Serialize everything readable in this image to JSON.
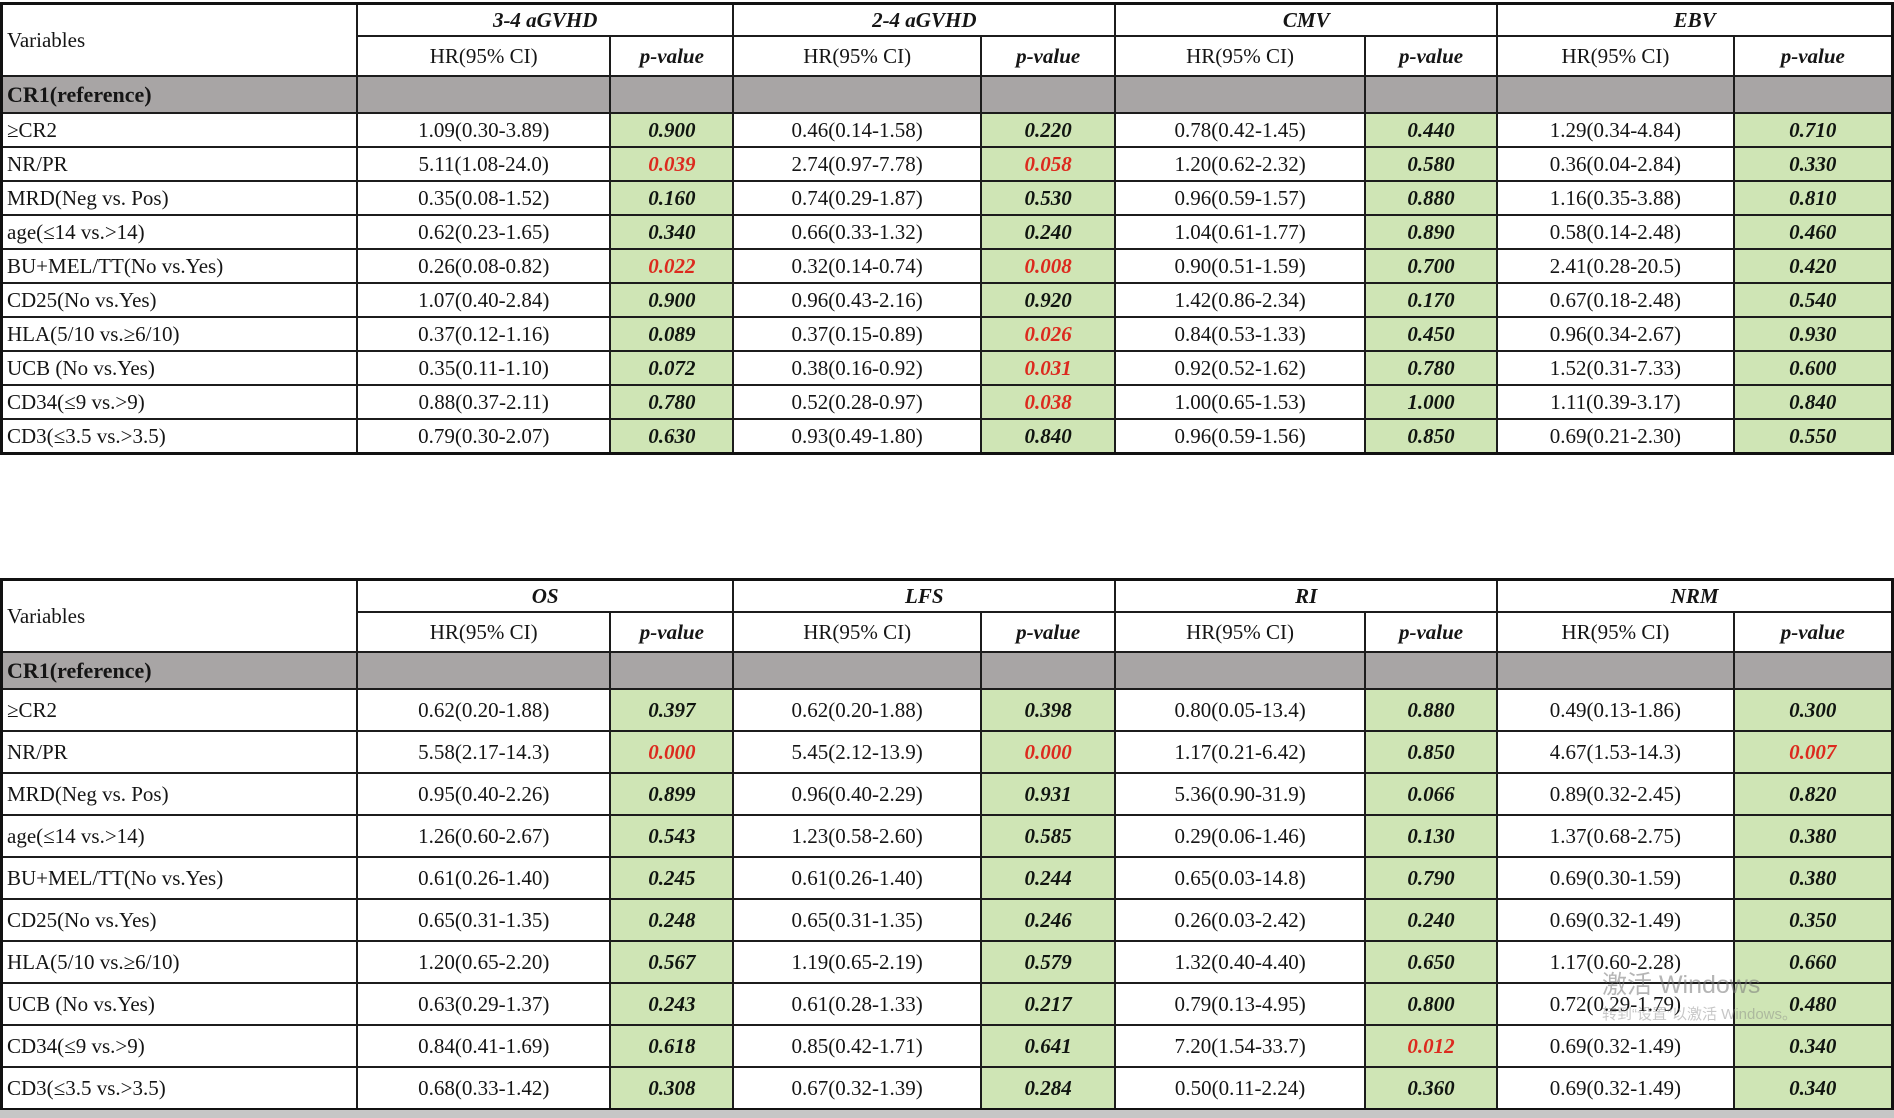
{
  "colors": {
    "p_cell_green": "#cfe5b5",
    "reference_gray": "#a8a5a5",
    "significant_red": "#dc2a1e",
    "ink": "#151515"
  },
  "watermark": {
    "line1": "激活 Windows",
    "line2": "转到“设置”以激活 Windows。"
  },
  "tables": [
    {
      "variables_header": "Variables",
      "hr_header": "HR(95% CI)",
      "p_header": "p-value",
      "groups": [
        "3-4 aGVHD",
        "2-4 aGVHD",
        "CMV",
        "EBV"
      ],
      "reference_row": "CR1(reference)",
      "rows": [
        {
          "variable": "≥CR2",
          "cells": [
            {
              "hr": "1.09(0.30-3.89)",
              "p": "0.900",
              "sig": false
            },
            {
              "hr": "0.46(0.14-1.58)",
              "p": "0.220",
              "sig": false
            },
            {
              "hr": "0.78(0.42-1.45)",
              "p": "0.440",
              "sig": false
            },
            {
              "hr": "1.29(0.34-4.84)",
              "p": "0.710",
              "sig": false
            }
          ]
        },
        {
          "variable": "NR/PR",
          "cells": [
            {
              "hr": "5.11(1.08-24.0)",
              "p": "0.039",
              "sig": true
            },
            {
              "hr": "2.74(0.97-7.78)",
              "p": "0.058",
              "sig": true
            },
            {
              "hr": "1.20(0.62-2.32)",
              "p": "0.580",
              "sig": false
            },
            {
              "hr": "0.36(0.04-2.84)",
              "p": "0.330",
              "sig": false
            }
          ]
        },
        {
          "variable": "MRD(Neg vs. Pos)",
          "cells": [
            {
              "hr": "0.35(0.08-1.52)",
              "p": "0.160",
              "sig": false
            },
            {
              "hr": "0.74(0.29-1.87)",
              "p": "0.530",
              "sig": false
            },
            {
              "hr": "0.96(0.59-1.57)",
              "p": "0.880",
              "sig": false
            },
            {
              "hr": "1.16(0.35-3.88)",
              "p": "0.810",
              "sig": false
            }
          ]
        },
        {
          "variable": "age(≤14 vs.>14)",
          "cells": [
            {
              "hr": "0.62(0.23-1.65)",
              "p": "0.340",
              "sig": false
            },
            {
              "hr": "0.66(0.33-1.32)",
              "p": "0.240",
              "sig": false
            },
            {
              "hr": "1.04(0.61-1.77)",
              "p": "0.890",
              "sig": false
            },
            {
              "hr": "0.58(0.14-2.48)",
              "p": "0.460",
              "sig": false
            }
          ]
        },
        {
          "variable": "BU+MEL/TT(No vs.Yes)",
          "cells": [
            {
              "hr": "0.26(0.08-0.82)",
              "p": "0.022",
              "sig": true
            },
            {
              "hr": "0.32(0.14-0.74)",
              "p": "0.008",
              "sig": true
            },
            {
              "hr": "0.90(0.51-1.59)",
              "p": "0.700",
              "sig": false
            },
            {
              "hr": "2.41(0.28-20.5)",
              "p": "0.420",
              "sig": false
            }
          ]
        },
        {
          "variable": "CD25(No vs.Yes)",
          "cells": [
            {
              "hr": "1.07(0.40-2.84)",
              "p": "0.900",
              "sig": false
            },
            {
              "hr": "0.96(0.43-2.16)",
              "p": "0.920",
              "sig": false
            },
            {
              "hr": "1.42(0.86-2.34)",
              "p": "0.170",
              "sig": false
            },
            {
              "hr": "0.67(0.18-2.48)",
              "p": "0.540",
              "sig": false
            }
          ]
        },
        {
          "variable": "HLA(5/10 vs.≥6/10)",
          "cells": [
            {
              "hr": "0.37(0.12-1.16)",
              "p": "0.089",
              "sig": false
            },
            {
              "hr": "0.37(0.15-0.89)",
              "p": "0.026",
              "sig": true
            },
            {
              "hr": "0.84(0.53-1.33)",
              "p": "0.450",
              "sig": false
            },
            {
              "hr": "0.96(0.34-2.67)",
              "p": "0.930",
              "sig": false
            }
          ]
        },
        {
          "variable": "UCB (No vs.Yes)",
          "cells": [
            {
              "hr": "0.35(0.11-1.10)",
              "p": "0.072",
              "sig": false
            },
            {
              "hr": "0.38(0.16-0.92)",
              "p": "0.031",
              "sig": true
            },
            {
              "hr": "0.92(0.52-1.62)",
              "p": "0.780",
              "sig": false
            },
            {
              "hr": "1.52(0.31-7.33)",
              "p": "0.600",
              "sig": false
            }
          ]
        },
        {
          "variable": "CD34(≤9 vs.>9)",
          "cells": [
            {
              "hr": "0.88(0.37-2.11)",
              "p": "0.780",
              "sig": false
            },
            {
              "hr": "0.52(0.28-0.97)",
              "p": "0.038",
              "sig": true
            },
            {
              "hr": "1.00(0.65-1.53)",
              "p": "1.000",
              "sig": false
            },
            {
              "hr": "1.11(0.39-3.17)",
              "p": "0.840",
              "sig": false
            }
          ]
        },
        {
          "variable": "CD3(≤3.5 vs.>3.5)",
          "cells": [
            {
              "hr": "0.79(0.30-2.07)",
              "p": "0.630",
              "sig": false
            },
            {
              "hr": "0.93(0.49-1.80)",
              "p": "0.840",
              "sig": false
            },
            {
              "hr": "0.96(0.59-1.56)",
              "p": "0.850",
              "sig": false
            },
            {
              "hr": "0.69(0.21-2.30)",
              "p": "0.550",
              "sig": false
            }
          ]
        }
      ]
    },
    {
      "variables_header": "Variables",
      "hr_header": "HR(95% CI)",
      "p_header": "p-value",
      "groups": [
        "OS",
        "LFS",
        "RI",
        "NRM"
      ],
      "reference_row": "CR1(reference)",
      "rows": [
        {
          "variable": "≥CR2",
          "cells": [
            {
              "hr": "0.62(0.20-1.88)",
              "p": "0.397",
              "sig": false
            },
            {
              "hr": "0.62(0.20-1.88)",
              "p": "0.398",
              "sig": false
            },
            {
              "hr": "0.80(0.05-13.4)",
              "p": "0.880",
              "sig": false
            },
            {
              "hr": "0.49(0.13-1.86)",
              "p": "0.300",
              "sig": false
            }
          ]
        },
        {
          "variable": "NR/PR",
          "cells": [
            {
              "hr": "5.58(2.17-14.3)",
              "p": "0.000",
              "sig": true
            },
            {
              "hr": "5.45(2.12-13.9)",
              "p": "0.000",
              "sig": true
            },
            {
              "hr": "1.17(0.21-6.42)",
              "p": "0.850",
              "sig": false
            },
            {
              "hr": "4.67(1.53-14.3)",
              "p": "0.007",
              "sig": true
            }
          ]
        },
        {
          "variable": "MRD(Neg vs. Pos)",
          "cells": [
            {
              "hr": "0.95(0.40-2.26)",
              "p": "0.899",
              "sig": false
            },
            {
              "hr": "0.96(0.40-2.29)",
              "p": "0.931",
              "sig": false
            },
            {
              "hr": "5.36(0.90-31.9)",
              "p": "0.066",
              "sig": false
            },
            {
              "hr": "0.89(0.32-2.45)",
              "p": "0.820",
              "sig": false
            }
          ]
        },
        {
          "variable": "age(≤14 vs.>14)",
          "cells": [
            {
              "hr": "1.26(0.60-2.67)",
              "p": "0.543",
              "sig": false
            },
            {
              "hr": "1.23(0.58-2.60)",
              "p": "0.585",
              "sig": false
            },
            {
              "hr": "0.29(0.06-1.46)",
              "p": "0.130",
              "sig": false
            },
            {
              "hr": "1.37(0.68-2.75)",
              "p": "0.380",
              "sig": false
            }
          ]
        },
        {
          "variable": "BU+MEL/TT(No vs.Yes)",
          "cells": [
            {
              "hr": "0.61(0.26-1.40)",
              "p": "0.245",
              "sig": false
            },
            {
              "hr": "0.61(0.26-1.40)",
              "p": "0.244",
              "sig": false
            },
            {
              "hr": "0.65(0.03-14.8)",
              "p": "0.790",
              "sig": false
            },
            {
              "hr": "0.69(0.30-1.59)",
              "p": "0.380",
              "sig": false
            }
          ]
        },
        {
          "variable": "CD25(No vs.Yes)",
          "cells": [
            {
              "hr": "0.65(0.31-1.35)",
              "p": "0.248",
              "sig": false
            },
            {
              "hr": "0.65(0.31-1.35)",
              "p": "0.246",
              "sig": false
            },
            {
              "hr": "0.26(0.03-2.42)",
              "p": "0.240",
              "sig": false
            },
            {
              "hr": "0.69(0.32-1.49)",
              "p": "0.350",
              "sig": false
            }
          ]
        },
        {
          "variable": "HLA(5/10 vs.≥6/10)",
          "cells": [
            {
              "hr": "1.20(0.65-2.20)",
              "p": "0.567",
              "sig": false
            },
            {
              "hr": "1.19(0.65-2.19)",
              "p": "0.579",
              "sig": false
            },
            {
              "hr": "1.32(0.40-4.40)",
              "p": "0.650",
              "sig": false
            },
            {
              "hr": "1.17(0.60-2.28)",
              "p": "0.660",
              "sig": false
            }
          ]
        },
        {
          "variable": "UCB (No vs.Yes)",
          "cells": [
            {
              "hr": "0.63(0.29-1.37)",
              "p": "0.243",
              "sig": false
            },
            {
              "hr": "0.61(0.28-1.33)",
              "p": "0.217",
              "sig": false
            },
            {
              "hr": "0.79(0.13-4.95)",
              "p": "0.800",
              "sig": false
            },
            {
              "hr": "0.72(0.29-1.79)",
              "p": "0.480",
              "sig": false
            }
          ]
        },
        {
          "variable": "CD34(≤9 vs.>9)",
          "cells": [
            {
              "hr": "0.84(0.41-1.69)",
              "p": "0.618",
              "sig": false
            },
            {
              "hr": "0.85(0.42-1.71)",
              "p": "0.641",
              "sig": false
            },
            {
              "hr": "7.20(1.54-33.7)",
              "p": "0.012",
              "sig": true
            },
            {
              "hr": "0.69(0.32-1.49)",
              "p": "0.340",
              "sig": false
            }
          ]
        },
        {
          "variable": "CD3(≤3.5 vs.>3.5)",
          "cells": [
            {
              "hr": "0.68(0.33-1.42)",
              "p": "0.308",
              "sig": false
            },
            {
              "hr": "0.67(0.32-1.39)",
              "p": "0.284",
              "sig": false
            },
            {
              "hr": "0.50(0.11-2.24)",
              "p": "0.360",
              "sig": false
            },
            {
              "hr": "0.69(0.32-1.49)",
              "p": "0.340",
              "sig": false
            }
          ]
        }
      ]
    }
  ]
}
